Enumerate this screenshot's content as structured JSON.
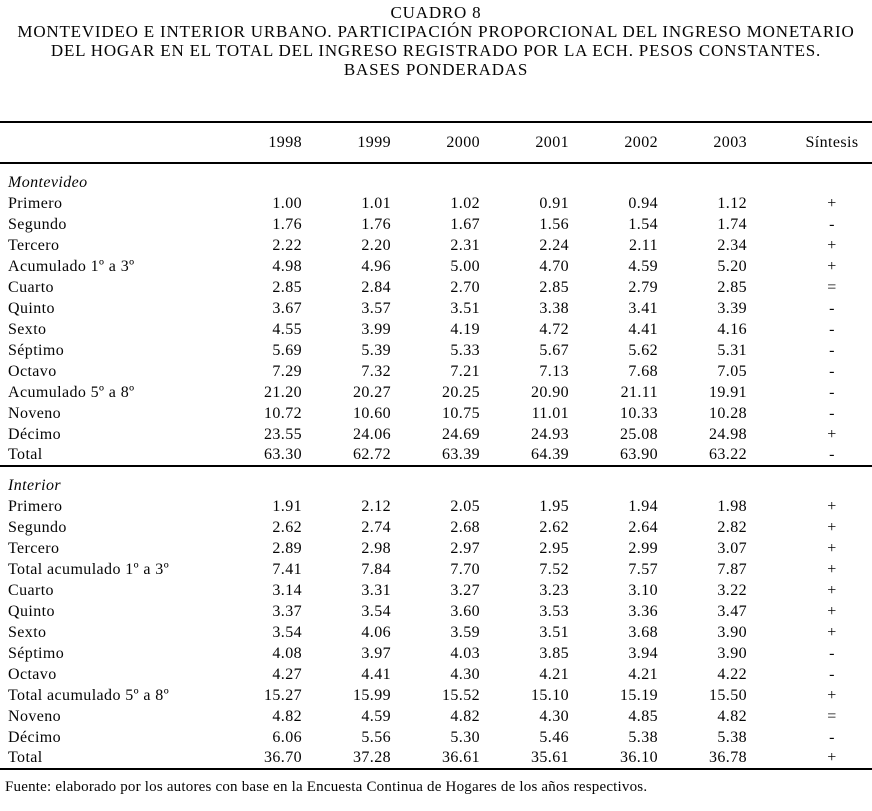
{
  "title": {
    "line1": "CUADRO 8",
    "line2": "MONTEVIDEO E INTERIOR URBANO. PARTICIPACIÓN PROPORCIONAL DEL INGRESO MONETARIO",
    "line3": "DEL HOGAR EN EL TOTAL DEL INGRESO REGISTRADO POR LA ECH. PESOS CONSTANTES.",
    "line4": "BASES PONDERADAS"
  },
  "table": {
    "years": [
      "1998",
      "1999",
      "2000",
      "2001",
      "2002",
      "2003"
    ],
    "sintesis_label": "Síntesis",
    "sections": [
      {
        "name": "Montevideo",
        "rows": [
          {
            "label": "Primero",
            "values": [
              "1.00",
              "1.01",
              "1.02",
              "0.91",
              "0.94",
              "1.12"
            ],
            "sintesis": "+"
          },
          {
            "label": "Segundo",
            "values": [
              "1.76",
              "1.76",
              "1.67",
              "1.56",
              "1.54",
              "1.74"
            ],
            "sintesis": "-"
          },
          {
            "label": "Tercero",
            "values": [
              "2.22",
              "2.20",
              "2.31",
              "2.24",
              "2.11",
              "2.34"
            ],
            "sintesis": "+"
          },
          {
            "label": "Acumulado 1º a 3º",
            "values": [
              "4.98",
              "4.96",
              "5.00",
              "4.70",
              "4.59",
              "5.20"
            ],
            "sintesis": "+"
          },
          {
            "label": "Cuarto",
            "values": [
              "2.85",
              "2.84",
              "2.70",
              "2.85",
              "2.79",
              "2.85"
            ],
            "sintesis": "="
          },
          {
            "label": "Quinto",
            "values": [
              "3.67",
              "3.57",
              "3.51",
              "3.38",
              "3.41",
              "3.39"
            ],
            "sintesis": "-"
          },
          {
            "label": "Sexto",
            "values": [
              "4.55",
              "3.99",
              "4.19",
              "4.72",
              "4.41",
              "4.16"
            ],
            "sintesis": "-"
          },
          {
            "label": "Séptimo",
            "values": [
              "5.69",
              "5.39",
              "5.33",
              "5.67",
              "5.62",
              "5.31"
            ],
            "sintesis": "-"
          },
          {
            "label": "Octavo",
            "values": [
              "7.29",
              "7.32",
              "7.21",
              "7.13",
              "7.68",
              "7.05"
            ],
            "sintesis": "-"
          },
          {
            "label": "Acumulado 5º a 8º",
            "values": [
              "21.20",
              "20.27",
              "20.25",
              "20.90",
              "21.11",
              "19.91"
            ],
            "sintesis": "-"
          },
          {
            "label": "Noveno",
            "values": [
              "10.72",
              "10.60",
              "10.75",
              "11.01",
              "10.33",
              "10.28"
            ],
            "sintesis": "-"
          },
          {
            "label": "Décimo",
            "values": [
              "23.55",
              "24.06",
              "24.69",
              "24.93",
              "25.08",
              "24.98"
            ],
            "sintesis": "+"
          },
          {
            "label": "Total",
            "values": [
              "63.30",
              "62.72",
              "63.39",
              "64.39",
              "63.90",
              "63.22"
            ],
            "sintesis": "-"
          }
        ]
      },
      {
        "name": "Interior",
        "rows": [
          {
            "label": "Primero",
            "values": [
              "1.91",
              "2.12",
              "2.05",
              "1.95",
              "1.94",
              "1.98"
            ],
            "sintesis": "+"
          },
          {
            "label": "Segundo",
            "values": [
              "2.62",
              "2.74",
              "2.68",
              "2.62",
              "2.64",
              "2.82"
            ],
            "sintesis": "+"
          },
          {
            "label": "Tercero",
            "values": [
              "2.89",
              "2.98",
              "2.97",
              "2.95",
              "2.99",
              "3.07"
            ],
            "sintesis": "+"
          },
          {
            "label": "Total acumulado 1º a 3º",
            "values": [
              "7.41",
              "7.84",
              "7.70",
              "7.52",
              "7.57",
              "7.87"
            ],
            "sintesis": "+"
          },
          {
            "label": "Cuarto",
            "values": [
              "3.14",
              "3.31",
              "3.27",
              "3.23",
              "3.10",
              "3.22"
            ],
            "sintesis": "+"
          },
          {
            "label": "Quinto",
            "values": [
              "3.37",
              "3.54",
              "3.60",
              "3.53",
              "3.36",
              "3.47"
            ],
            "sintesis": "+"
          },
          {
            "label": "Sexto",
            "values": [
              "3.54",
              "4.06",
              "3.59",
              "3.51",
              "3.68",
              "3.90"
            ],
            "sintesis": "+"
          },
          {
            "label": "Séptimo",
            "values": [
              "4.08",
              "3.97",
              "4.03",
              "3.85",
              "3.94",
              "3.90"
            ],
            "sintesis": "-"
          },
          {
            "label": "Octavo",
            "values": [
              "4.27",
              "4.41",
              "4.30",
              "4.21",
              "4.21",
              "4.22"
            ],
            "sintesis": "-"
          },
          {
            "label": "Total acumulado 5º a 8º",
            "values": [
              "15.27",
              "15.99",
              "15.52",
              "15.10",
              "15.19",
              "15.50"
            ],
            "sintesis": "+"
          },
          {
            "label": "Noveno",
            "values": [
              "4.82",
              "4.59",
              "4.82",
              "4.30",
              "4.85",
              "4.82"
            ],
            "sintesis": "="
          },
          {
            "label": "Décimo",
            "values": [
              "6.06",
              "5.56",
              "5.30",
              "5.46",
              "5.38",
              "5.38"
            ],
            "sintesis": "-"
          },
          {
            "label": "Total",
            "values": [
              "36.70",
              "37.28",
              "36.61",
              "35.61",
              "36.10",
              "36.78"
            ],
            "sintesis": "+"
          }
        ]
      }
    ]
  },
  "footer": "Fuente: elaborado por los autores con base en la Encuesta Continua de Hogares de los años respectivos."
}
